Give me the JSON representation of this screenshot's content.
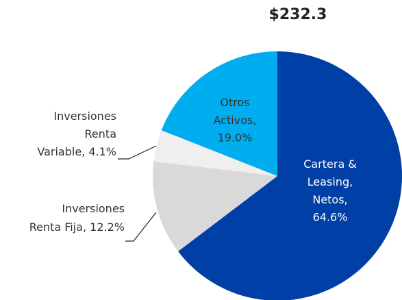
{
  "chart_data": {
    "type": "pie",
    "title": "$232.3",
    "categories": [
      [
        "Cartera &",
        "Leasing,",
        "Netos,"
      ],
      [
        "Inversiones",
        "Renta Fija,"
      ],
      [
        "Inversiones",
        "Renta",
        "Variable,"
      ],
      [
        "Otros",
        "Activos,"
      ]
    ],
    "values": [
      64.6,
      12.2,
      4.1,
      19.0
    ],
    "value_labels": [
      "64.6%",
      "12.2%",
      "4.1%",
      "19.0%"
    ],
    "colors": [
      "#0040a6",
      "#d9d9d9",
      "#efefef",
      "#00adee"
    ]
  }
}
